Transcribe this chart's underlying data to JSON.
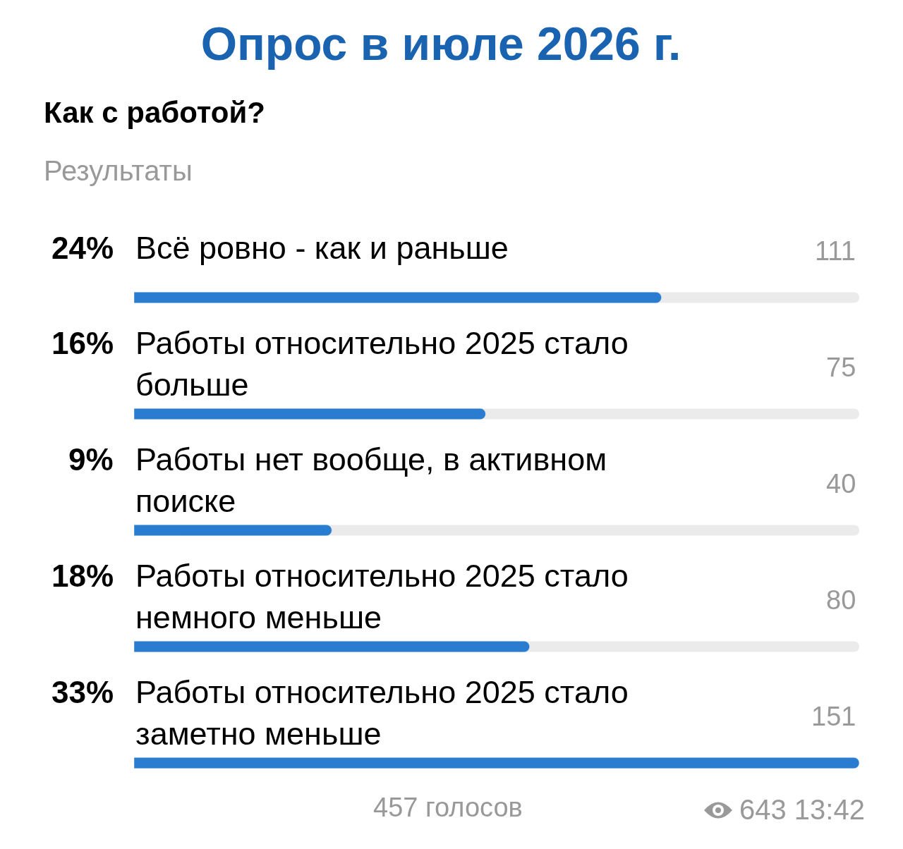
{
  "chart_data": {
    "type": "bar",
    "orientation": "horizontal",
    "title": "Опрос в июле 2026 г.",
    "subtitle": "Как с работой?",
    "categories": [
      "Всё ровно - как и раньше",
      "Работы относительно 2025 стало больше",
      "Работы нет вообще, в активном поиске",
      "Работы относительно 2025 стало немного меньше",
      "Работы относительно 2025 стало заметно меньше"
    ],
    "values": [
      24,
      16,
      9,
      18,
      33
    ],
    "value_labels": [
      "24%",
      "16%",
      "9%",
      "18%",
      "33%"
    ],
    "color": "#2a7cd0",
    "tick_labels": "y",
    "annotations": [
      "Результаты",
      "111",
      "75",
      "40",
      "80",
      "151",
      "457 голосов",
      "643 13:42"
    ]
  }
}
